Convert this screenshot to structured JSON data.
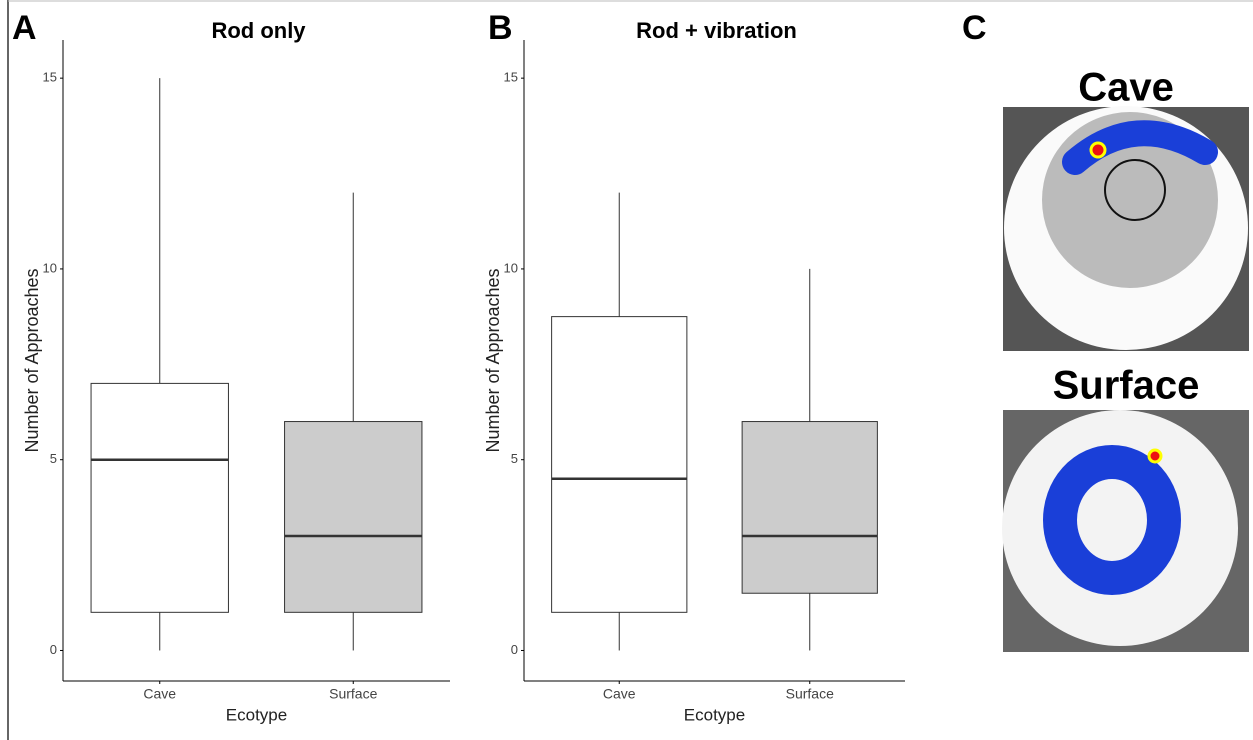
{
  "chart_data": [
    {
      "type": "box",
      "panel": "A",
      "title": "Rod only",
      "x_label": "Ecotype",
      "y_label": "Number of Approaches",
      "categories": [
        "Cave",
        "Surface"
      ],
      "colors": [
        "#ffffff",
        "#cccccc"
      ],
      "boxes": [
        {
          "min": 0,
          "q1": 1,
          "median": 5,
          "q3": 7,
          "max": 15
        },
        {
          "min": 0,
          "q1": 1,
          "median": 3,
          "q3": 6,
          "max": 12
        }
      ],
      "ylim": [
        -0.8,
        16
      ],
      "yticks": [
        0,
        5,
        10,
        15
      ]
    },
    {
      "type": "box",
      "panel": "B",
      "title": "Rod + vibration",
      "x_label": "Ecotype",
      "y_label": "Number of Approaches",
      "categories": [
        "Cave",
        "Surface"
      ],
      "colors": [
        "#ffffff",
        "#cccccc"
      ],
      "boxes": [
        {
          "min": 0,
          "q1": 1,
          "median": 4.5,
          "q3": 8.75,
          "max": 12
        },
        {
          "min": 0,
          "q1": 1.5,
          "median": 3,
          "q3": 6,
          "max": 10
        }
      ],
      "ylim": [
        -0.8,
        16
      ],
      "yticks": [
        0,
        5,
        10,
        15
      ]
    }
  ],
  "panel_c": {
    "panel": "C",
    "images": [
      "Cave",
      "Surface"
    ]
  }
}
